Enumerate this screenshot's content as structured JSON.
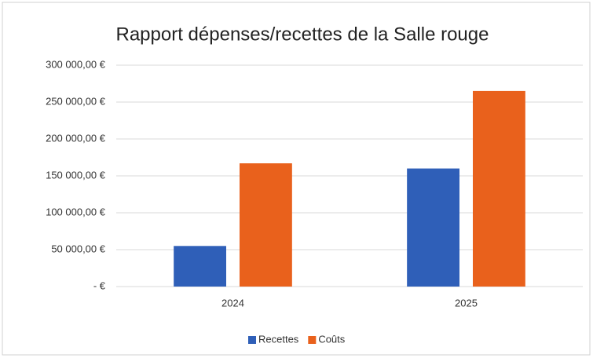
{
  "chart_data": {
    "type": "bar",
    "title": "Rapport dépenses/recettes de la Salle rouge",
    "categories": [
      "2024",
      "2025"
    ],
    "series": [
      {
        "name": "Recettes",
        "color": "#2f5fb8",
        "values": [
          55000,
          160000
        ]
      },
      {
        "name": "Coûts",
        "color": "#e9611c",
        "values": [
          167000,
          265000
        ]
      }
    ],
    "ylim": [
      0,
      300000
    ],
    "yticks": [
      {
        "value": 0,
        "label": "-   €"
      },
      {
        "value": 50000,
        "label": "50 000,00 €"
      },
      {
        "value": 100000,
        "label": "100 000,00 €"
      },
      {
        "value": 150000,
        "label": "150 000,00 €"
      },
      {
        "value": 200000,
        "label": "200 000,00 €"
      },
      {
        "value": 250000,
        "label": "250 000,00 €"
      },
      {
        "value": 300000,
        "label": "300 000,00 €"
      }
    ],
    "grid": true,
    "legend": "bottom"
  }
}
